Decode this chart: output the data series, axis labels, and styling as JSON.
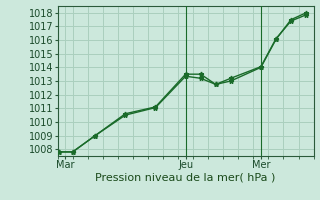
{
  "xlabel": "Pression niveau de la mer( hPa )",
  "background_color": "#cce8dc",
  "plot_bg_color": "#cce8dc",
  "grid_color": "#aacfbe",
  "line_color": "#1a6b2a",
  "ylim": [
    1007.5,
    1018.5
  ],
  "yticks": [
    1008,
    1009,
    1010,
    1011,
    1012,
    1013,
    1014,
    1015,
    1016,
    1017,
    1018
  ],
  "xtick_labels": [
    "Mar",
    "Jeu",
    "Mer"
  ],
  "xtick_positions": [
    0.5,
    8.5,
    13.5
  ],
  "vline_positions": [
    8.5,
    13.5
  ],
  "xlim": [
    0,
    17
  ],
  "line1_x": [
    0.1,
    1.0,
    2.5,
    4.5,
    6.5,
    8.5,
    9.5,
    10.5,
    11.5,
    13.5,
    14.5,
    15.5,
    16.5
  ],
  "line1_y": [
    1007.8,
    1007.8,
    1009.0,
    1010.6,
    1011.1,
    1013.5,
    1013.5,
    1012.75,
    1013.2,
    1014.05,
    1016.1,
    1017.4,
    1017.85
  ],
  "line2_x": [
    0.1,
    1.0,
    2.5,
    4.5,
    6.5,
    8.5,
    9.5,
    10.5,
    11.5,
    13.5,
    14.5,
    15.5,
    16.5
  ],
  "line2_y": [
    1007.8,
    1007.8,
    1009.0,
    1010.5,
    1011.05,
    1013.35,
    1013.2,
    1012.75,
    1013.0,
    1014.0,
    1016.05,
    1017.5,
    1018.0
  ],
  "xlabel_fontsize": 8,
  "tick_fontsize": 7
}
